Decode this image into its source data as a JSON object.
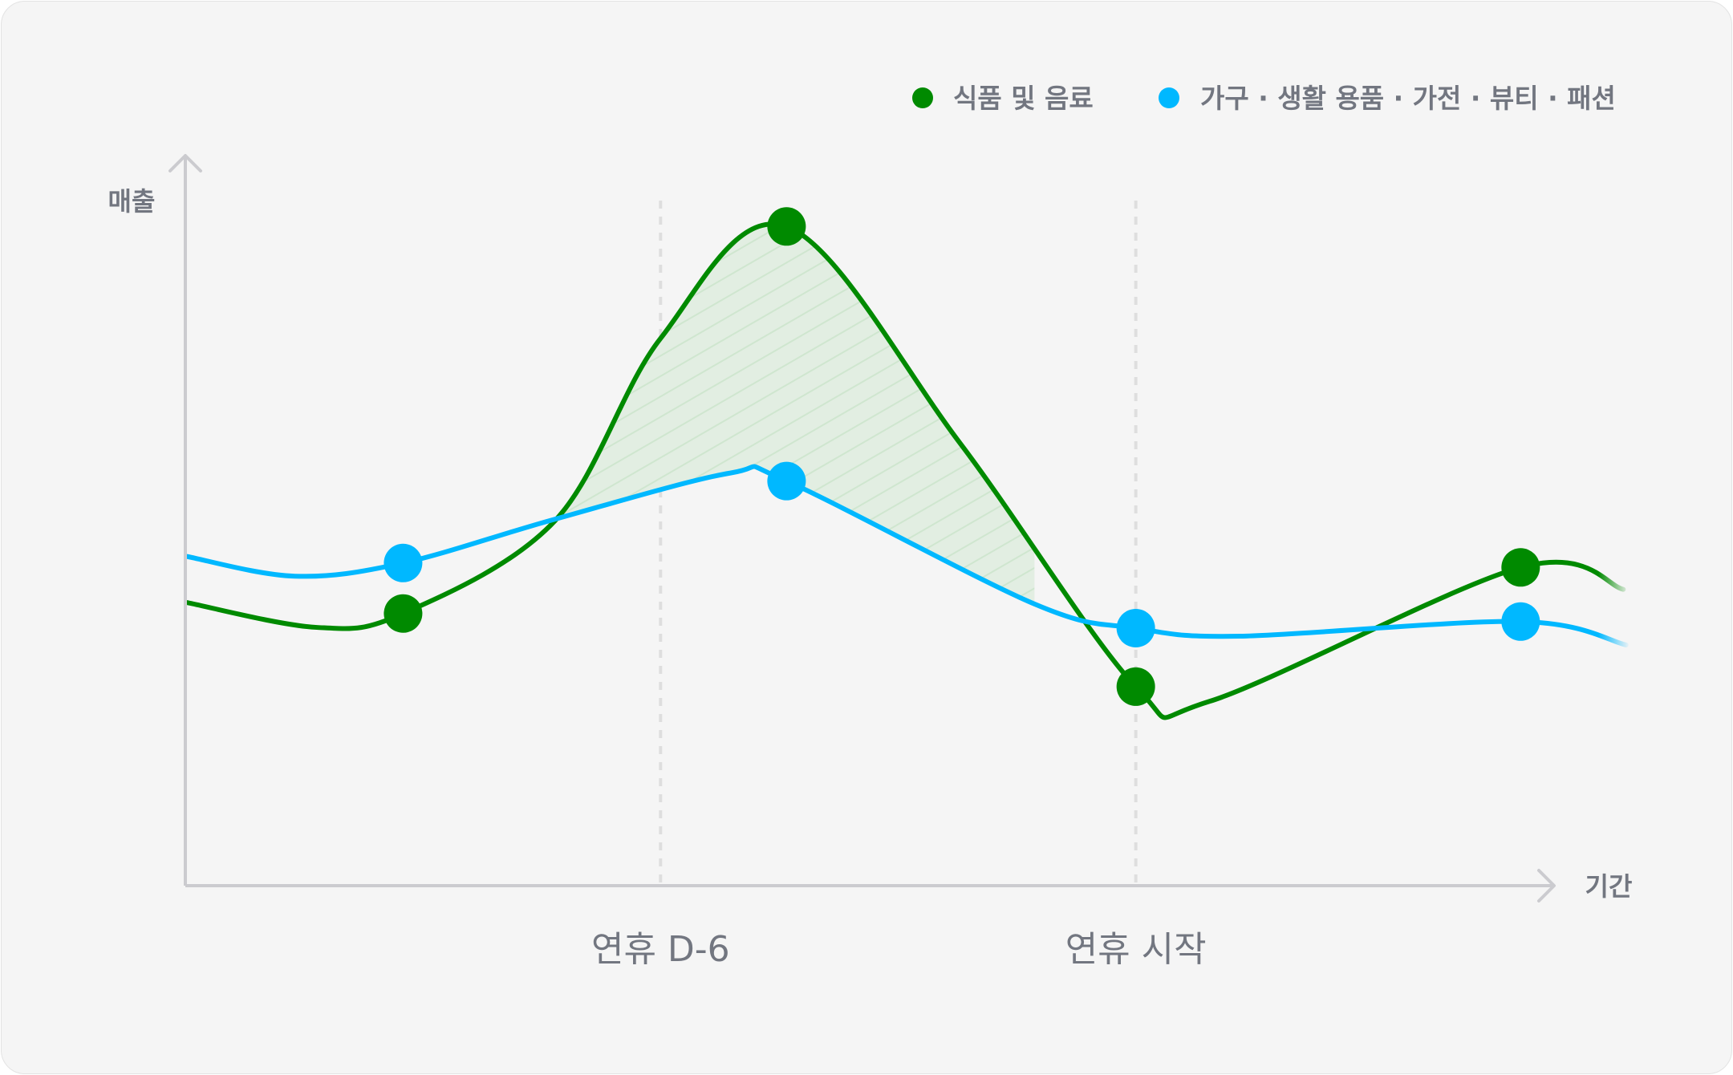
{
  "chart_data": {
    "type": "line",
    "title": "",
    "xlabel": "기간",
    "ylabel": "매출",
    "xlim": [
      0,
      100
    ],
    "ylim": [
      0,
      100
    ],
    "grid": false,
    "legend_position": "top-right",
    "annotations": [
      {
        "label": "연휴 D-6",
        "x": 34.7
      },
      {
        "label": "연휴 시작",
        "x": 69.4
      }
    ],
    "highlight": {
      "series": "식품 및 음료",
      "from_x": 27,
      "to_x": 62,
      "style": "hatched area between series"
    },
    "series": [
      {
        "name": "식품 및 음료",
        "color": "#008a00",
        "points": [
          {
            "x": 0.1,
            "y": 38.7,
            "marker": false
          },
          {
            "x": 9.6,
            "y": 35.3,
            "marker": false
          },
          {
            "x": 15.9,
            "y": 37.2,
            "marker": true
          },
          {
            "x": 27,
            "y": 49.9,
            "marker": false
          },
          {
            "x": 34.7,
            "y": 74.8,
            "marker": false
          },
          {
            "x": 43.9,
            "y": 90.1,
            "marker": true
          },
          {
            "x": 56.6,
            "y": 60.4,
            "marker": false
          },
          {
            "x": 69.4,
            "y": 27.2,
            "marker": true
          },
          {
            "x": 74.8,
            "y": 25.2,
            "marker": false
          },
          {
            "x": 97.5,
            "y": 43.5,
            "marker": true
          },
          {
            "x": 105,
            "y": 40.5,
            "marker": false
          }
        ]
      },
      {
        "name": "가구 · 생활 용품 · 가전 · 뷰티 · 패션",
        "color": "#00b8ff",
        "points": [
          {
            "x": 0.1,
            "y": 45.0,
            "marker": false
          },
          {
            "x": 8,
            "y": 42.3,
            "marker": false
          },
          {
            "x": 15.9,
            "y": 44.1,
            "marker": true
          },
          {
            "x": 27,
            "y": 50.1,
            "marker": false
          },
          {
            "x": 39.8,
            "y": 56.4,
            "marker": false
          },
          {
            "x": 43.9,
            "y": 55.3,
            "marker": true
          },
          {
            "x": 62,
            "y": 38.5,
            "marker": false
          },
          {
            "x": 69.4,
            "y": 35.2,
            "marker": true
          },
          {
            "x": 77,
            "y": 34.1,
            "marker": false
          },
          {
            "x": 97.5,
            "y": 36.1,
            "marker": true
          },
          {
            "x": 105.2,
            "y": 32.9,
            "marker": false
          }
        ]
      }
    ]
  }
}
